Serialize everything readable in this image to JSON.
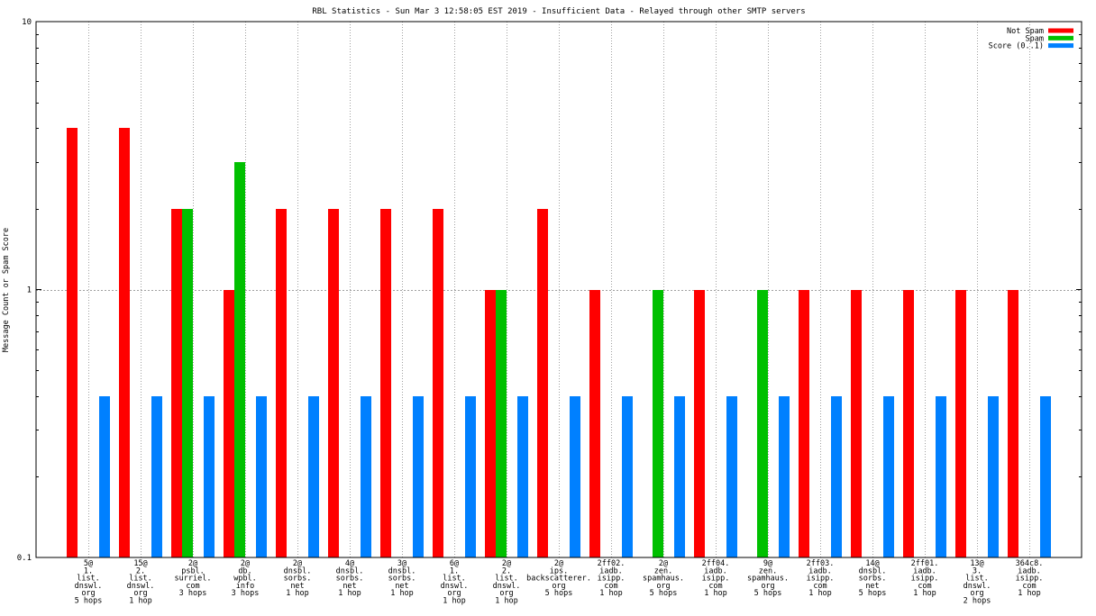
{
  "chart_data": {
    "type": "bar",
    "title": "RBL Statistics - Sun Mar  3 12:58:05 EST 2019 - Insufficient Data - Relayed through other SMTP servers",
    "xlabel": "",
    "ylabel": "Message Count or Spam Score",
    "yscale": "log",
    "ylim": [
      0.1,
      10
    ],
    "yticks": [
      {
        "value": 0.1,
        "label": "0.1"
      },
      {
        "value": 1,
        "label": "1"
      },
      {
        "value": 10,
        "label": "10"
      }
    ],
    "grid": true,
    "legend_position": "top-right",
    "categories": [
      [
        "5@",
        "1.",
        "list.",
        "dnswl.",
        "org",
        "5 hops"
      ],
      [
        "15@",
        "2.",
        "list.",
        "dnswl.",
        "org",
        "1 hop"
      ],
      [
        "2@",
        "psbl.",
        "surriel.",
        "com",
        "3 hops"
      ],
      [
        "2@",
        "db.",
        "wpbl.",
        "info",
        "3 hops"
      ],
      [
        "2@",
        "dnsbl.",
        "sorbs.",
        "net",
        "1 hop"
      ],
      [
        "4@",
        "dnsbl.",
        "sorbs.",
        "net",
        "1 hop"
      ],
      [
        "3@",
        "dnsbl.",
        "sorbs.",
        "net",
        "1 hop"
      ],
      [
        "6@",
        "1.",
        "list.",
        "dnswl.",
        "org",
        "1 hop"
      ],
      [
        "2@",
        "2.",
        "list.",
        "dnswl.",
        "org",
        "1 hop"
      ],
      [
        "2@",
        "ips.",
        "backscatterer.",
        "org",
        "5 hops"
      ],
      [
        "2ff02.",
        "iadb.",
        "isipp.",
        "com",
        "1 hop"
      ],
      [
        "2@",
        "zen.",
        "spamhaus.",
        "org",
        "5 hops"
      ],
      [
        "2ff04.",
        "iadb.",
        "isipp.",
        "com",
        "1 hop"
      ],
      [
        "9@",
        "zen.",
        "spamhaus.",
        "org",
        "5 hops"
      ],
      [
        "2ff03.",
        "iadb.",
        "isipp.",
        "com",
        "1 hop"
      ],
      [
        "14@",
        "dnsbl.",
        "sorbs.",
        "net",
        "5 hops"
      ],
      [
        "2ff01.",
        "iadb.",
        "isipp.",
        "com",
        "1 hop"
      ],
      [
        "13@",
        "3.",
        "list.",
        "dnswl.",
        "org",
        "2 hops"
      ],
      [
        "364c8.",
        "iadb.",
        "isipp.",
        "com",
        "1 hop"
      ]
    ],
    "series": [
      {
        "name": "Not Spam",
        "color": "#ff0000",
        "values": [
          4,
          4,
          2,
          1,
          2,
          2,
          2,
          2,
          1,
          2,
          1,
          null,
          1,
          null,
          1,
          1,
          1,
          1,
          1
        ]
      },
      {
        "name": "Spam",
        "color": "#00c000",
        "values": [
          null,
          null,
          2,
          3,
          null,
          null,
          null,
          null,
          1,
          null,
          null,
          1,
          null,
          1,
          null,
          null,
          null,
          null,
          null
        ]
      },
      {
        "name": "Score (0..1)",
        "color": "#0080ff",
        "values": [
          0.4,
          0.4,
          0.4,
          0.4,
          0.4,
          0.4,
          0.4,
          0.4,
          0.4,
          0.4,
          0.4,
          0.4,
          0.4,
          0.4,
          0.4,
          0.4,
          0.4,
          0.4,
          0.4
        ]
      }
    ]
  }
}
